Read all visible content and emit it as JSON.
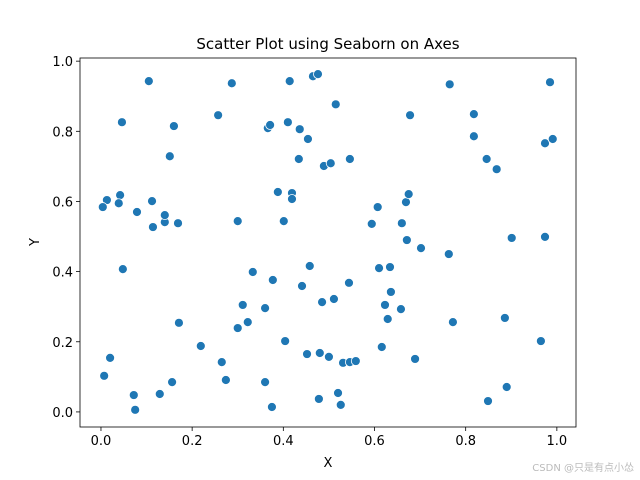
{
  "chart_data": {
    "type": "scatter",
    "title": "Scatter Plot using Seaborn on Axes",
    "x_label": "X",
    "y_label": "Y",
    "color": "#1f77b4",
    "xlim": [
      -0.046,
      1.042
    ],
    "ylim": [
      -0.043,
      1.009
    ],
    "xticks": [
      {
        "value": 0,
        "label": "0.0"
      },
      0.2,
      0.4,
      0.6,
      0.8,
      {
        "value": 1,
        "label": "1.0"
      }
    ],
    "yticks": [
      {
        "value": 0,
        "label": "0.0"
      },
      0.2,
      0.4,
      0.6,
      0.8,
      {
        "value": 1,
        "label": "1.0"
      }
    ],
    "x": [
      0.007,
      0.013,
      0.02,
      0.004,
      0.042,
      0.039,
      0.046,
      0.048,
      0.072,
      0.075,
      0.079,
      0.105,
      0.112,
      0.114,
      0.129,
      0.14,
      0.14,
      0.151,
      0.156,
      0.16,
      0.169,
      0.171,
      0.219,
      0.257,
      0.265,
      0.274,
      0.287,
      0.3,
      0.3,
      0.311,
      0.322,
      0.333,
      0.36,
      0.36,
      0.366,
      0.371,
      0.375,
      0.377,
      0.388,
      0.401,
      0.404,
      0.41,
      0.414,
      0.419,
      0.419,
      0.434,
      0.436,
      0.441,
      0.452,
      0.454,
      0.458,
      0.465,
      0.476,
      0.478,
      0.48,
      0.485,
      0.489,
      0.5,
      0.504,
      0.511,
      0.515,
      0.52,
      0.526,
      0.531,
      0.544,
      0.546,
      0.546,
      0.559,
      0.594,
      0.607,
      0.61,
      0.616,
      0.623,
      0.629,
      0.634,
      0.636,
      0.658,
      0.66,
      0.669,
      0.671,
      0.675,
      0.678,
      0.689,
      0.702,
      0.763,
      0.765,
      0.772,
      0.818,
      0.818,
      0.846,
      0.849,
      0.868,
      0.886,
      0.89,
      0.901,
      0.965,
      0.974,
      0.974,
      0.985,
      0.991
    ],
    "y": [
      0.103,
      0.604,
      0.154,
      0.584,
      0.618,
      0.595,
      0.826,
      0.407,
      0.048,
      0.006,
      0.57,
      0.943,
      0.601,
      0.527,
      0.051,
      0.541,
      0.561,
      0.729,
      0.085,
      0.815,
      0.538,
      0.254,
      0.188,
      0.846,
      0.142,
      0.091,
      0.937,
      0.544,
      0.239,
      0.305,
      0.256,
      0.399,
      0.085,
      0.296,
      0.809,
      0.818,
      0.014,
      0.376,
      0.627,
      0.544,
      0.202,
      0.826,
      0.943,
      0.624,
      0.607,
      0.721,
      0.806,
      0.359,
      0.165,
      0.778,
      0.416,
      0.957,
      0.963,
      0.037,
      0.168,
      0.313,
      0.701,
      0.157,
      0.709,
      0.322,
      0.877,
      0.054,
      0.02,
      0.14,
      0.368,
      0.721,
      0.142,
      0.145,
      0.536,
      0.584,
      0.41,
      0.185,
      0.305,
      0.265,
      0.413,
      0.342,
      0.293,
      0.538,
      0.598,
      0.49,
      0.621,
      0.846,
      0.151,
      0.467,
      0.45,
      0.934,
      0.256,
      0.849,
      0.786,
      0.721,
      0.031,
      0.692,
      0.268,
      0.071,
      0.496,
      0.202,
      0.766,
      0.499,
      0.94,
      0.778
    ]
  },
  "watermark": "CSDN @只是有点小怂"
}
